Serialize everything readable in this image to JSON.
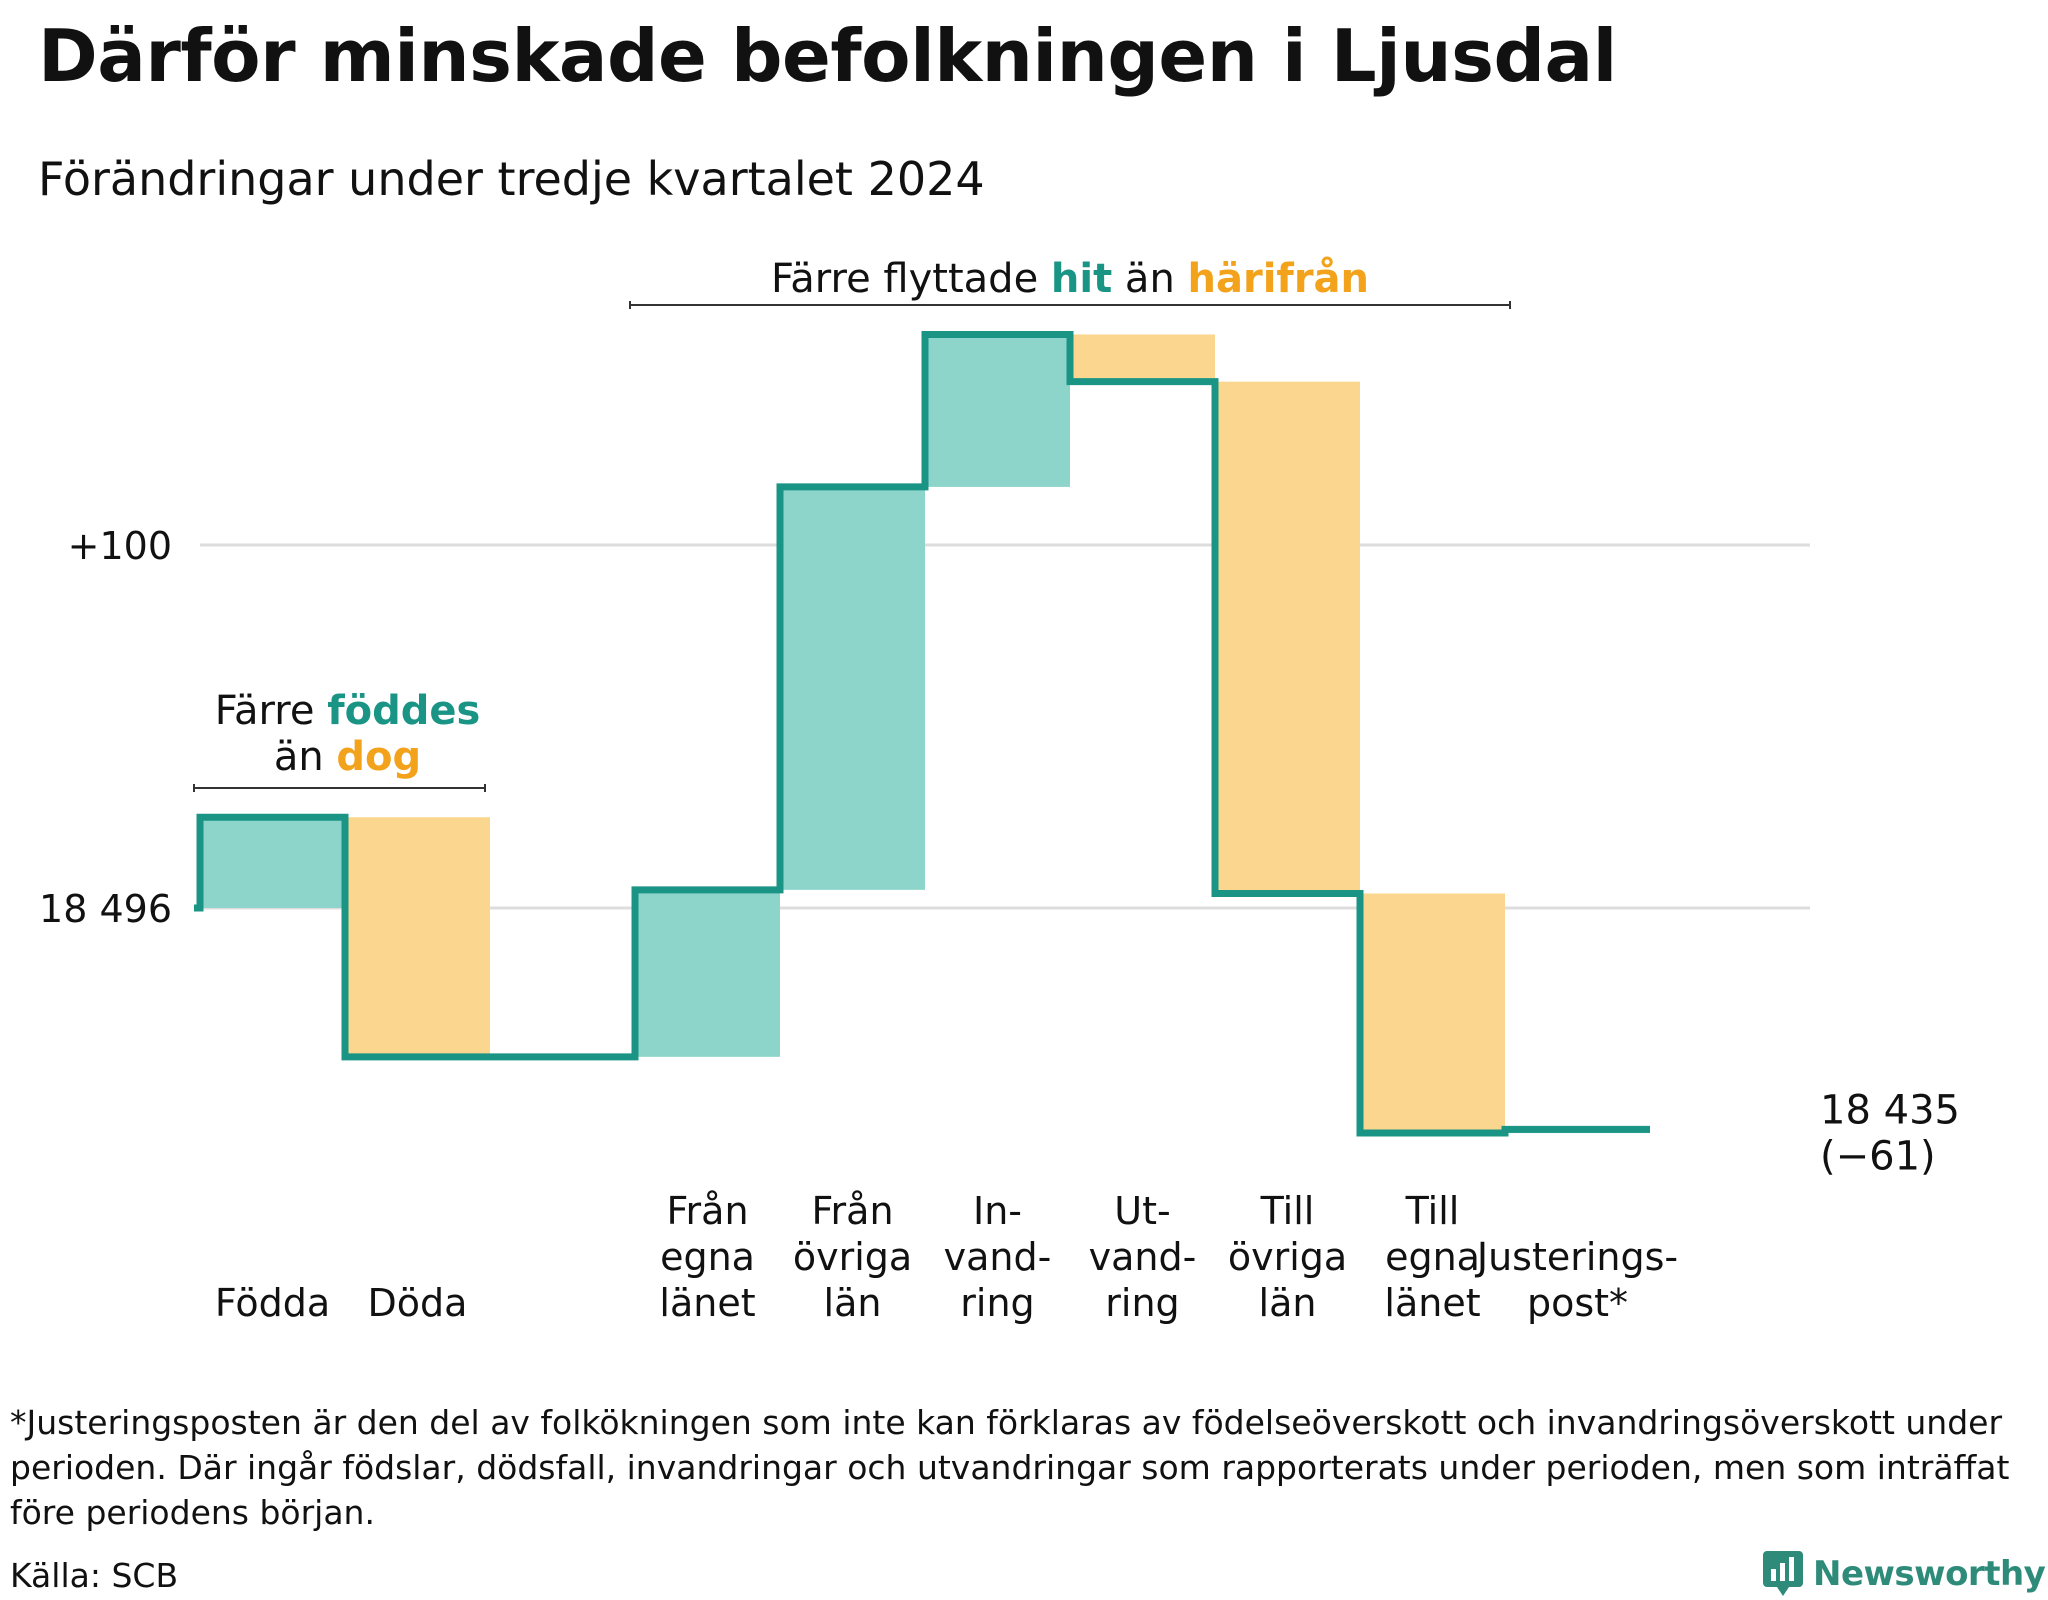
{
  "title": "Därför minskade befolkningen i Ljusdal",
  "subtitle": "Förändringar under tredje kvartalet 2024",
  "colors": {
    "increase_fill": "#8dd4cb",
    "decrease_fill": "#fad68e",
    "line": "#1a9484",
    "teal_text": "#1a9484",
    "orange_text": "#f2a21b",
    "grid": "#dddddd",
    "brand": "#2e8b7a"
  },
  "chart_data": {
    "type": "waterfall",
    "start_value": 18496,
    "start_label": "18 496",
    "reference_tick": {
      "label": "+100",
      "value": 18596
    },
    "end_label_lines": [
      "18 435",
      "(−61)"
    ],
    "grid": true,
    "steps": [
      {
        "label_lines": [
          "Födda"
        ],
        "direction": "increase",
        "start": 18496,
        "end": 18521
      },
      {
        "label_lines": [
          "Döda"
        ],
        "direction": "decrease",
        "start": 18521,
        "end": 18455
      },
      {
        "label_lines": [],
        "direction": "none",
        "start": 18455,
        "end": 18455
      },
      {
        "label_lines": [
          "Från",
          "egna",
          "länet"
        ],
        "direction": "increase",
        "start": 18455,
        "end": 18501
      },
      {
        "label_lines": [
          "Från",
          "övriga",
          "län"
        ],
        "direction": "increase",
        "start": 18501,
        "end": 18612
      },
      {
        "label_lines": [
          "In-",
          "vand-",
          "ring"
        ],
        "direction": "increase",
        "start": 18612,
        "end": 18654
      },
      {
        "label_lines": [
          "Ut-",
          "vand-",
          "ring"
        ],
        "direction": "decrease",
        "start": 18654,
        "end": 18641
      },
      {
        "label_lines": [
          "Till",
          "övriga",
          "län"
        ],
        "direction": "decrease",
        "start": 18641,
        "end": 18500
      },
      {
        "label_lines": [
          "Till",
          "egna",
          "länet"
        ],
        "direction": "decrease",
        "start": 18500,
        "end": 18434
      },
      {
        "label_lines": [
          "Justerings-",
          "post*"
        ],
        "direction": "increase",
        "start": 18434,
        "end": 18435
      }
    ],
    "annotations": [
      {
        "parts": [
          {
            "text": "Färre flyttade ",
            "style": "normal"
          },
          {
            "text": "hit",
            "style": "teal"
          },
          {
            "text": " än ",
            "style": "normal"
          },
          {
            "text": "härifrån",
            "style": "orange"
          }
        ]
      },
      {
        "lines": [
          [
            {
              "text": "Färre ",
              "style": "normal"
            },
            {
              "text": "föddes",
              "style": "teal"
            }
          ],
          [
            {
              "text": "än ",
              "style": "normal"
            },
            {
              "text": "dog",
              "style": "orange"
            }
          ]
        ]
      }
    ]
  },
  "footnote": "*Justeringsposten är den del av folkökningen som inte kan förklaras av födelseöverskott och invandringsöverskott under perioden. Där ingår födslar, dödsfall, invandringar och utvandringar som rapporterats under perioden, men som inträffat före periodens början.",
  "source": "Källa: SCB",
  "brand": {
    "name": "Newsworthy",
    "icon": "newsworthy-logo-icon"
  }
}
